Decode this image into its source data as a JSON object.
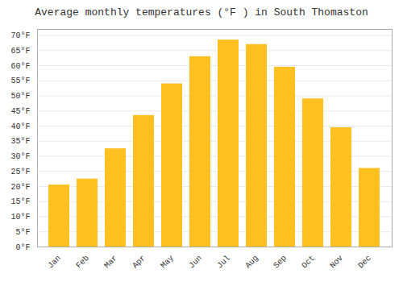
{
  "chart_data": {
    "type": "bar",
    "title": "Average monthly temperatures (°F ) in South Thomaston",
    "categories": [
      "Jan",
      "Feb",
      "Mar",
      "Apr",
      "May",
      "Jun",
      "Jul",
      "Aug",
      "Sep",
      "Oct",
      "Nov",
      "Dec"
    ],
    "values": [
      20.5,
      22.5,
      32.5,
      43.5,
      54.0,
      63.0,
      68.5,
      67.0,
      59.5,
      49.0,
      39.5,
      26.0
    ],
    "color": "#FFC020",
    "ylim": [
      0,
      72
    ],
    "yticks": [
      {
        "value": 0,
        "label": "0°F"
      },
      {
        "value": 5,
        "label": "5°F"
      },
      {
        "value": 10,
        "label": "10°F"
      },
      {
        "value": 15,
        "label": "15°F"
      },
      {
        "value": 20,
        "label": "20°F"
      },
      {
        "value": 25,
        "label": "25°F"
      },
      {
        "value": 30,
        "label": "30°F"
      },
      {
        "value": 35,
        "label": "35°F"
      },
      {
        "value": 40,
        "label": "40°F"
      },
      {
        "value": 45,
        "label": "45°F"
      },
      {
        "value": 50,
        "label": "50°F"
      },
      {
        "value": 55,
        "label": "55°F"
      },
      {
        "value": 60,
        "label": "60°F"
      },
      {
        "value": 65,
        "label": "65°F"
      },
      {
        "value": 70,
        "label": "70°F"
      }
    ],
    "grid": true
  }
}
